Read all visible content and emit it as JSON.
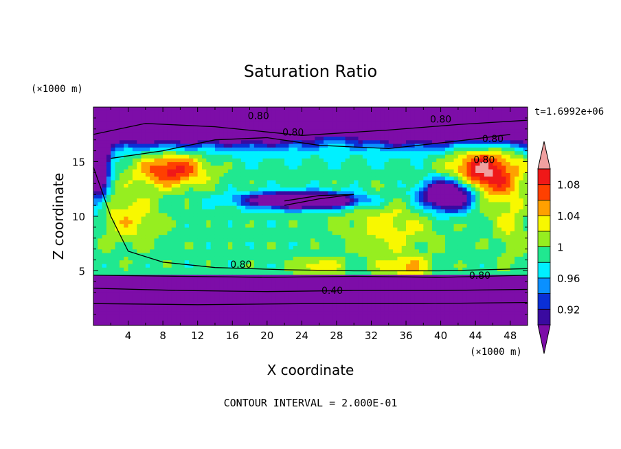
{
  "chart_data": {
    "type": "heatmap",
    "title": "Saturation Ratio",
    "xlabel": "X coordinate",
    "ylabel": "Z coordinate",
    "x_unit": "(×1000 m)",
    "y_unit": "(×1000 m)",
    "xlim": [
      0,
      50
    ],
    "ylim": [
      0,
      20
    ],
    "x_ticks": [
      4,
      8,
      12,
      16,
      20,
      24,
      28,
      32,
      36,
      40,
      44,
      48
    ],
    "y_ticks": [
      5,
      10,
      15
    ],
    "time_label": "t=1.6992e+06",
    "contour_interval_text": "CONTOUR INTERVAL = 2.000E-01",
    "colorbar": {
      "levels": [
        0.92,
        0.96,
        1,
        1.04,
        1.08
      ],
      "labels": [
        "0.92",
        "0.96",
        "1",
        "1.04",
        "1.08"
      ],
      "colors": [
        "#7d0da8",
        "#3a0aa0",
        "#0a2fd6",
        "#0a90ff",
        "#00f0ff",
        "#20e890",
        "#96ee20",
        "#f8f800",
        "#ffa000",
        "#ff4000",
        "#f01818",
        "#f0a0a0"
      ]
    },
    "contour_labels": [
      {
        "text": "0.80",
        "x": 19,
        "z": 19.2
      },
      {
        "text": "0.80",
        "x": 23,
        "z": 17.7
      },
      {
        "text": "0.80",
        "x": 40,
        "z": 18.9
      },
      {
        "text": "0.80",
        "x": 46,
        "z": 17.1
      },
      {
        "text": "0.80",
        "x": 45,
        "z": 15.2
      },
      {
        "text": "0.80",
        "x": 17,
        "z": 5.6
      },
      {
        "text": "0.80",
        "x": 44.5,
        "z": 4.6
      },
      {
        "text": "0.40",
        "x": 27.5,
        "z": 3.2
      }
    ]
  }
}
